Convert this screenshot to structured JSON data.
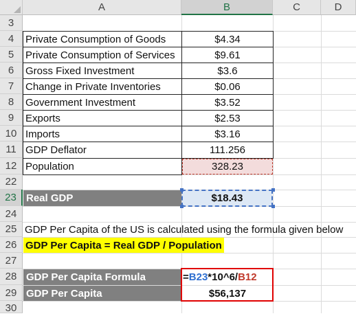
{
  "columns": [
    "A",
    "B",
    "C",
    "D"
  ],
  "selected_column": "B",
  "rows": [
    {
      "n": "3"
    },
    {
      "n": "4"
    },
    {
      "n": "5"
    },
    {
      "n": "6"
    },
    {
      "n": "7"
    },
    {
      "n": "8"
    },
    {
      "n": "9"
    },
    {
      "n": "10"
    },
    {
      "n": "11"
    },
    {
      "n": "12"
    },
    {
      "n": "22"
    },
    {
      "n": "23"
    },
    {
      "n": "24"
    },
    {
      "n": "25"
    },
    {
      "n": "26"
    },
    {
      "n": "27"
    },
    {
      "n": "28"
    },
    {
      "n": "29"
    },
    {
      "n": "30"
    }
  ],
  "data_table": [
    {
      "label": "Private Consumption of Goods",
      "value": "$4.34"
    },
    {
      "label": "Private Consumption of Services",
      "value": "$9.61"
    },
    {
      "label": "Gross Fixed Investment",
      "value": "$3.6"
    },
    {
      "label": "Change in Private Inventories",
      "value": "$0.06"
    },
    {
      "label": "Government Investment",
      "value": "$3.52"
    },
    {
      "label": "Exports",
      "value": "$2.53"
    },
    {
      "label": "Imports",
      "value": "$3.16"
    },
    {
      "label": "GDP Deflator",
      "value": "111.256"
    },
    {
      "label": "Population",
      "value": "328.23"
    }
  ],
  "real_gdp": {
    "label": "Real GDP",
    "value": "$18.43"
  },
  "note": "GDP Per Capita of the US is calculated using the formula given below",
  "formula_heading": "GDP Per Capita = Real GDP / Population",
  "formula_row": {
    "label": "GDP Per Capita Formula",
    "formula_prefix": "=",
    "ref1": "B23",
    "middle": "*10^6/",
    "ref2": "B12"
  },
  "result_row": {
    "label": "GDP Per Capita",
    "value": "$56,137"
  },
  "colors": {
    "header_bg": "#e6e6e6",
    "selected_green": "#217346",
    "dark_label": "#808080",
    "highlight_yellow": "#ffff00",
    "red_outline": "#e00000",
    "ref_blue": "#2e6fd0",
    "ref_red": "#c0392b"
  }
}
